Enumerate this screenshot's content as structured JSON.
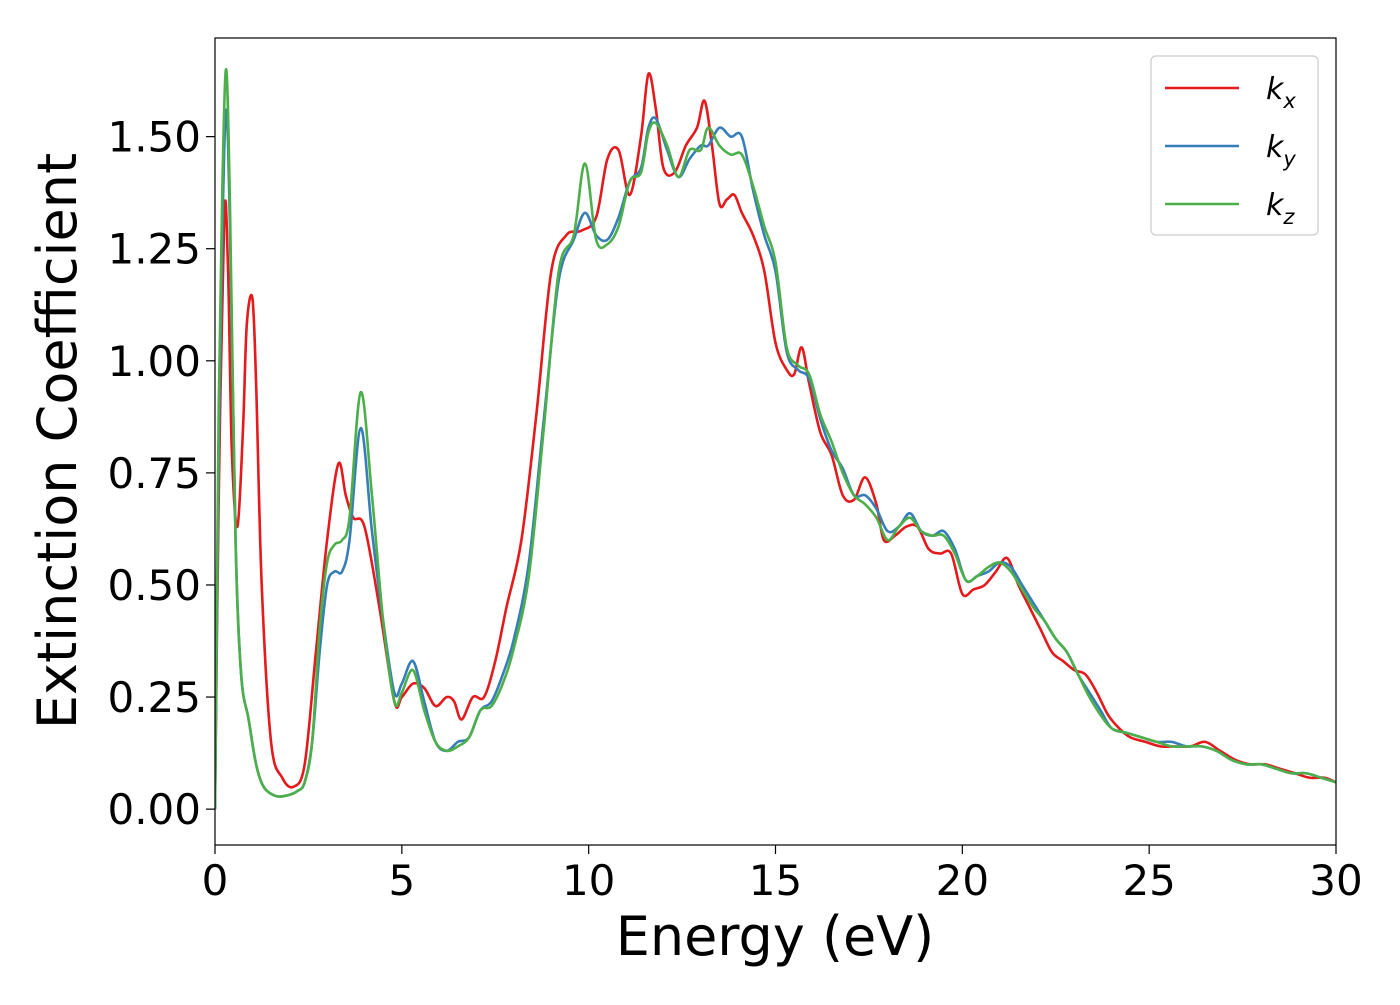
{
  "chart_data": {
    "type": "line",
    "title": "",
    "xlabel": "Energy (eV)",
    "ylabel": "Extinction Coefficient",
    "xlim": [
      0,
      30
    ],
    "ylim": [
      -0.08,
      1.72
    ],
    "xticks": [
      0,
      5,
      10,
      15,
      20,
      25,
      30
    ],
    "xtick_labels": [
      "0",
      "5",
      "10",
      "15",
      "20",
      "25",
      "30"
    ],
    "yticks": [
      0.0,
      0.25,
      0.5,
      0.75,
      1.0,
      1.25,
      1.5
    ],
    "ytick_labels": [
      "0.00",
      "0.25",
      "0.50",
      "0.75",
      "1.00",
      "1.25",
      "1.50"
    ],
    "grid": false,
    "legend_position": "top-right",
    "series": [
      {
        "name": "k_x",
        "label_main": "k",
        "label_sub": "x",
        "color": "#e41a1c",
        "x": [
          0,
          0.1,
          0.25,
          0.35,
          0.45,
          0.6,
          0.75,
          0.85,
          1.0,
          1.1,
          1.25,
          1.5,
          1.8,
          2.1,
          2.4,
          2.7,
          3.0,
          3.3,
          3.5,
          3.7,
          4.0,
          4.4,
          4.8,
          5.0,
          5.3,
          5.6,
          5.9,
          6.2,
          6.4,
          6.6,
          6.9,
          7.2,
          7.5,
          7.8,
          8.2,
          8.6,
          9.0,
          9.4,
          9.8,
          10.2,
          10.5,
          10.8,
          11.1,
          11.4,
          11.6,
          11.8,
          12.0,
          12.3,
          12.6,
          12.9,
          13.1,
          13.3,
          13.5,
          13.7,
          13.9,
          14.1,
          14.4,
          14.7,
          15.0,
          15.3,
          15.5,
          15.7,
          15.9,
          16.2,
          16.5,
          16.8,
          17.1,
          17.4,
          17.7,
          17.9,
          18.2,
          18.5,
          18.8,
          19.1,
          19.4,
          19.7,
          20.0,
          20.3,
          20.6,
          20.9,
          21.2,
          21.5,
          21.8,
          22.1,
          22.4,
          22.7,
          23.0,
          23.3,
          23.6,
          23.9,
          24.2,
          24.5,
          24.9,
          25.3,
          25.7,
          26.1,
          26.5,
          26.9,
          27.3,
          27.7,
          28.1,
          28.5,
          28.9,
          29.3,
          29.7,
          30.0
        ],
        "values": [
          0.0,
          0.7,
          1.33,
          1.2,
          0.8,
          0.63,
          0.85,
          1.08,
          1.14,
          0.95,
          0.5,
          0.15,
          0.07,
          0.05,
          0.1,
          0.35,
          0.6,
          0.77,
          0.7,
          0.65,
          0.63,
          0.45,
          0.24,
          0.25,
          0.28,
          0.27,
          0.23,
          0.25,
          0.24,
          0.2,
          0.25,
          0.25,
          0.33,
          0.45,
          0.6,
          0.88,
          1.2,
          1.28,
          1.29,
          1.32,
          1.45,
          1.47,
          1.37,
          1.5,
          1.64,
          1.56,
          1.43,
          1.42,
          1.48,
          1.52,
          1.58,
          1.48,
          1.35,
          1.36,
          1.37,
          1.33,
          1.28,
          1.2,
          1.04,
          0.98,
          0.97,
          1.03,
          0.95,
          0.84,
          0.79,
          0.7,
          0.69,
          0.74,
          0.68,
          0.6,
          0.61,
          0.63,
          0.63,
          0.58,
          0.57,
          0.57,
          0.48,
          0.49,
          0.5,
          0.53,
          0.56,
          0.5,
          0.45,
          0.4,
          0.35,
          0.33,
          0.31,
          0.3,
          0.26,
          0.21,
          0.18,
          0.16,
          0.15,
          0.14,
          0.14,
          0.14,
          0.15,
          0.13,
          0.11,
          0.1,
          0.1,
          0.09,
          0.08,
          0.07,
          0.07,
          0.06
        ]
      },
      {
        "name": "k_y",
        "label_main": "k",
        "label_sub": "y",
        "color": "#377eb8",
        "x": [
          0,
          0.1,
          0.2,
          0.3,
          0.4,
          0.55,
          0.7,
          0.9,
          1.1,
          1.3,
          1.6,
          1.9,
          2.2,
          2.4,
          2.6,
          2.8,
          3.0,
          3.2,
          3.4,
          3.6,
          3.9,
          4.2,
          4.5,
          4.8,
          5.0,
          5.3,
          5.6,
          5.9,
          6.2,
          6.5,
          6.8,
          7.1,
          7.4,
          7.7,
          8.0,
          8.4,
          8.8,
          9.2,
          9.6,
          9.9,
          10.2,
          10.5,
          10.8,
          11.1,
          11.4,
          11.6,
          11.8,
          12.1,
          12.4,
          12.7,
          13.0,
          13.2,
          13.5,
          13.8,
          14.1,
          14.4,
          14.7,
          15.0,
          15.3,
          15.6,
          15.9,
          16.2,
          16.5,
          16.8,
          17.1,
          17.4,
          17.7,
          18.0,
          18.3,
          18.6,
          18.9,
          19.2,
          19.5,
          19.8,
          20.1,
          20.4,
          20.7,
          21.0,
          21.3,
          21.6,
          21.9,
          22.2,
          22.5,
          22.8,
          23.1,
          23.4,
          23.7,
          24.0,
          24.4,
          24.8,
          25.2,
          25.6,
          26.0,
          26.4,
          26.8,
          27.2,
          27.6,
          28.0,
          28.4,
          28.8,
          29.2,
          29.6,
          30.0
        ],
        "values": [
          0.0,
          0.8,
          1.3,
          1.56,
          1.3,
          0.6,
          0.3,
          0.2,
          0.1,
          0.05,
          0.03,
          0.03,
          0.04,
          0.06,
          0.15,
          0.35,
          0.5,
          0.53,
          0.53,
          0.6,
          0.85,
          0.62,
          0.42,
          0.26,
          0.28,
          0.33,
          0.24,
          0.15,
          0.13,
          0.15,
          0.16,
          0.22,
          0.24,
          0.3,
          0.38,
          0.55,
          0.87,
          1.18,
          1.27,
          1.33,
          1.28,
          1.27,
          1.32,
          1.4,
          1.43,
          1.52,
          1.54,
          1.47,
          1.41,
          1.45,
          1.48,
          1.48,
          1.52,
          1.5,
          1.5,
          1.38,
          1.28,
          1.2,
          1.02,
          0.98,
          0.96,
          0.87,
          0.8,
          0.76,
          0.7,
          0.7,
          0.67,
          0.62,
          0.63,
          0.66,
          0.62,
          0.61,
          0.62,
          0.58,
          0.51,
          0.52,
          0.53,
          0.55,
          0.54,
          0.5,
          0.46,
          0.42,
          0.38,
          0.35,
          0.3,
          0.26,
          0.22,
          0.18,
          0.17,
          0.16,
          0.15,
          0.15,
          0.14,
          0.14,
          0.13,
          0.11,
          0.1,
          0.1,
          0.09,
          0.08,
          0.08,
          0.07,
          0.06
        ]
      },
      {
        "name": "k_z",
        "label_main": "k",
        "label_sub": "z",
        "color": "#4daf4a",
        "x": [
          0,
          0.1,
          0.2,
          0.3,
          0.4,
          0.55,
          0.7,
          0.9,
          1.1,
          1.3,
          1.6,
          1.9,
          2.2,
          2.4,
          2.6,
          2.8,
          3.0,
          3.2,
          3.4,
          3.6,
          3.9,
          4.2,
          4.5,
          4.8,
          5.0,
          5.3,
          5.6,
          5.9,
          6.2,
          6.5,
          6.8,
          7.1,
          7.4,
          7.7,
          8.0,
          8.4,
          8.8,
          9.2,
          9.6,
          9.9,
          10.2,
          10.5,
          10.8,
          11.1,
          11.4,
          11.6,
          11.8,
          12.1,
          12.4,
          12.7,
          13.0,
          13.2,
          13.5,
          13.8,
          14.1,
          14.4,
          14.7,
          15.0,
          15.3,
          15.6,
          15.9,
          16.2,
          16.5,
          16.8,
          17.1,
          17.4,
          17.7,
          18.0,
          18.3,
          18.6,
          18.9,
          19.2,
          19.5,
          19.8,
          20.1,
          20.4,
          20.7,
          21.0,
          21.3,
          21.6,
          21.9,
          22.2,
          22.5,
          22.8,
          23.1,
          23.4,
          23.7,
          24.0,
          24.4,
          24.8,
          25.2,
          25.6,
          26.0,
          26.4,
          26.8,
          27.2,
          27.6,
          28.0,
          28.4,
          28.8,
          29.2,
          29.6,
          30.0
        ],
        "values": [
          0.0,
          0.9,
          1.4,
          1.65,
          1.35,
          0.6,
          0.3,
          0.2,
          0.1,
          0.05,
          0.03,
          0.03,
          0.04,
          0.06,
          0.15,
          0.4,
          0.55,
          0.59,
          0.6,
          0.65,
          0.93,
          0.7,
          0.42,
          0.24,
          0.26,
          0.31,
          0.22,
          0.15,
          0.13,
          0.14,
          0.16,
          0.22,
          0.23,
          0.28,
          0.36,
          0.52,
          0.85,
          1.2,
          1.28,
          1.44,
          1.27,
          1.26,
          1.3,
          1.4,
          1.42,
          1.51,
          1.53,
          1.48,
          1.41,
          1.47,
          1.47,
          1.52,
          1.48,
          1.46,
          1.46,
          1.39,
          1.3,
          1.22,
          1.03,
          0.99,
          0.97,
          0.88,
          0.82,
          0.75,
          0.7,
          0.68,
          0.65,
          0.6,
          0.63,
          0.65,
          0.62,
          0.61,
          0.61,
          0.57,
          0.51,
          0.52,
          0.54,
          0.55,
          0.53,
          0.49,
          0.45,
          0.42,
          0.38,
          0.35,
          0.3,
          0.25,
          0.21,
          0.18,
          0.17,
          0.16,
          0.15,
          0.14,
          0.14,
          0.14,
          0.13,
          0.11,
          0.1,
          0.1,
          0.09,
          0.08,
          0.08,
          0.07,
          0.06
        ]
      }
    ]
  }
}
